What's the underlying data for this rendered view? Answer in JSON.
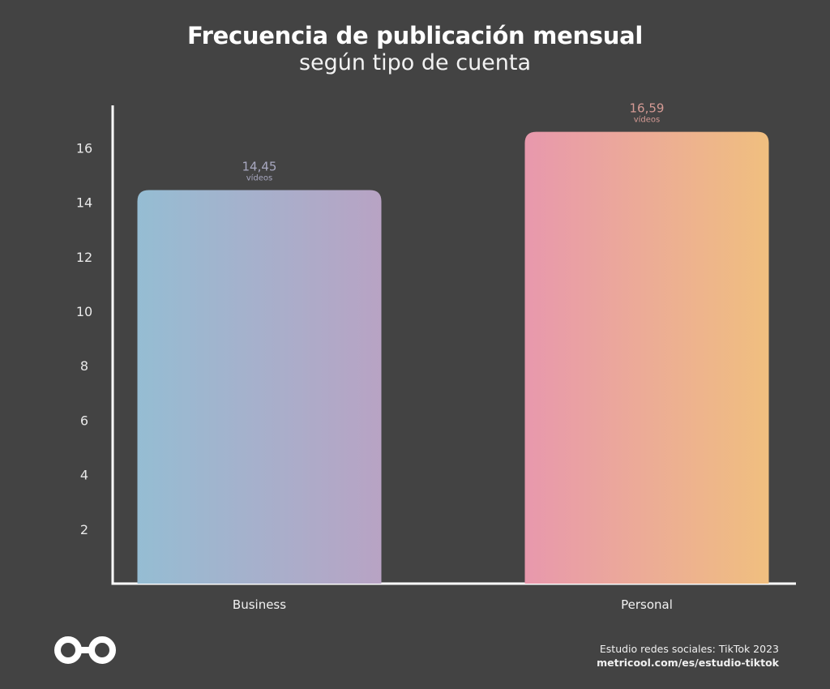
{
  "header": {
    "title": "Frecuencia de publicación mensual",
    "subtitle": "según tipo de cuenta"
  },
  "chart_data": {
    "type": "bar",
    "categories": [
      "Business",
      "Personal"
    ],
    "values": [
      14.45,
      16.59
    ],
    "value_labels": [
      "14,45",
      "16,59"
    ],
    "unit_label": "vídeos",
    "ylim": [
      0,
      17.5
    ],
    "yticks": [
      2,
      4,
      6,
      8,
      10,
      12,
      14,
      16
    ],
    "grid": false,
    "colors": {
      "business": [
        "#95bdd3",
        "#b8a3c4"
      ],
      "personal": [
        "#e898ad",
        "#f0bf7f"
      ],
      "business_label": "#a8a8c0",
      "personal_label": "#d49a94",
      "axis": "#ffffff",
      "tick_text": "#e8e8e8"
    }
  },
  "footer": {
    "source": "Estudio redes sociales: TikTok 2023",
    "url": "metricool.com/es/estudio-tiktok"
  },
  "logo": {
    "icon": "metricool-infinity-logo"
  }
}
